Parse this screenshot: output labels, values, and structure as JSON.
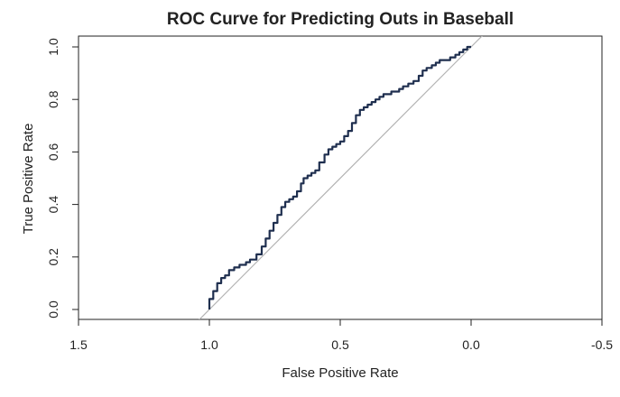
{
  "chart_data": {
    "type": "line",
    "title": "ROC Curve for Predicting Outs in Baseball",
    "xlabel": "False Positive Rate",
    "ylabel": "True Positive Rate",
    "x_axis_reversed": true,
    "xlim": [
      1.5,
      -0.5
    ],
    "ylim": [
      0.0,
      1.0
    ],
    "xticks": [
      1.5,
      1.0,
      0.5,
      0.0,
      -0.5
    ],
    "xtick_labels": [
      "1.5",
      "1.0",
      "0.5",
      "0.0",
      "-0.5"
    ],
    "yticks": [
      0.0,
      0.2,
      0.4,
      0.6,
      0.8,
      1.0
    ],
    "ytick_labels": [
      "0.0",
      "0.2",
      "0.4",
      "0.6",
      "0.8",
      "1.0"
    ],
    "grid": false,
    "series": [
      {
        "style": "step",
        "color": "#1f2f4f",
        "x": [
          1.0,
          0.985,
          0.97,
          0.955,
          0.94,
          0.925,
          0.905,
          0.885,
          0.86,
          0.845,
          0.82,
          0.8,
          0.785,
          0.77,
          0.755,
          0.74,
          0.725,
          0.71,
          0.695,
          0.68,
          0.665,
          0.65,
          0.64,
          0.625,
          0.61,
          0.595,
          0.58,
          0.56,
          0.545,
          0.53,
          0.515,
          0.5,
          0.485,
          0.47,
          0.455,
          0.44,
          0.425,
          0.41,
          0.395,
          0.38,
          0.365,
          0.35,
          0.335,
          0.32,
          0.305,
          0.29,
          0.275,
          0.26,
          0.24,
          0.22,
          0.2,
          0.185,
          0.17,
          0.15,
          0.135,
          0.12,
          0.1,
          0.08,
          0.06,
          0.045,
          0.03,
          0.015,
          0.0
        ],
        "y": [
          0.0,
          0.04,
          0.07,
          0.1,
          0.12,
          0.13,
          0.15,
          0.16,
          0.17,
          0.18,
          0.19,
          0.21,
          0.24,
          0.27,
          0.3,
          0.33,
          0.36,
          0.39,
          0.41,
          0.42,
          0.43,
          0.45,
          0.48,
          0.5,
          0.51,
          0.52,
          0.53,
          0.56,
          0.59,
          0.61,
          0.62,
          0.63,
          0.64,
          0.66,
          0.68,
          0.71,
          0.74,
          0.76,
          0.77,
          0.78,
          0.79,
          0.8,
          0.81,
          0.82,
          0.82,
          0.83,
          0.83,
          0.84,
          0.85,
          0.86,
          0.87,
          0.89,
          0.91,
          0.92,
          0.93,
          0.94,
          0.95,
          0.95,
          0.96,
          0.97,
          0.98,
          0.99,
          1.0
        ]
      },
      {
        "style": "diagonal-reference",
        "color": "#b3b3b3",
        "x": [
          1.05,
          -0.05
        ],
        "y": [
          -0.05,
          1.05
        ]
      }
    ]
  }
}
